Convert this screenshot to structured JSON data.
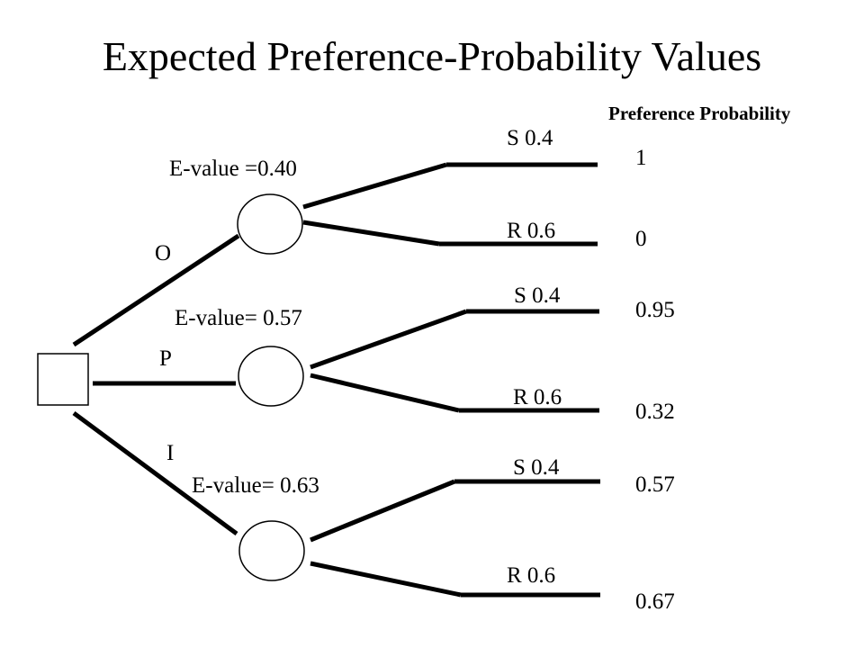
{
  "title": "Expected Preference-Probability Values",
  "preference_header": "Preference Probability",
  "options": [
    {
      "label": "O",
      "evalue": "E-value =0.40",
      "branches": [
        {
          "label": "S 0.4",
          "outcome": "1"
        },
        {
          "label": "R 0.6",
          "outcome": "0"
        }
      ]
    },
    {
      "label": "P",
      "evalue": "E-value= 0.57",
      "branches": [
        {
          "label": "S 0.4",
          "outcome": "0.95"
        },
        {
          "label": "R 0.6",
          "outcome": "0.32"
        }
      ]
    },
    {
      "label": "I",
      "evalue": "E-value= 0.63",
      "branches": [
        {
          "label": "S 0.4",
          "outcome": "0.57"
        },
        {
          "label": "R 0.6",
          "outcome": "0.67"
        }
      ]
    }
  ]
}
